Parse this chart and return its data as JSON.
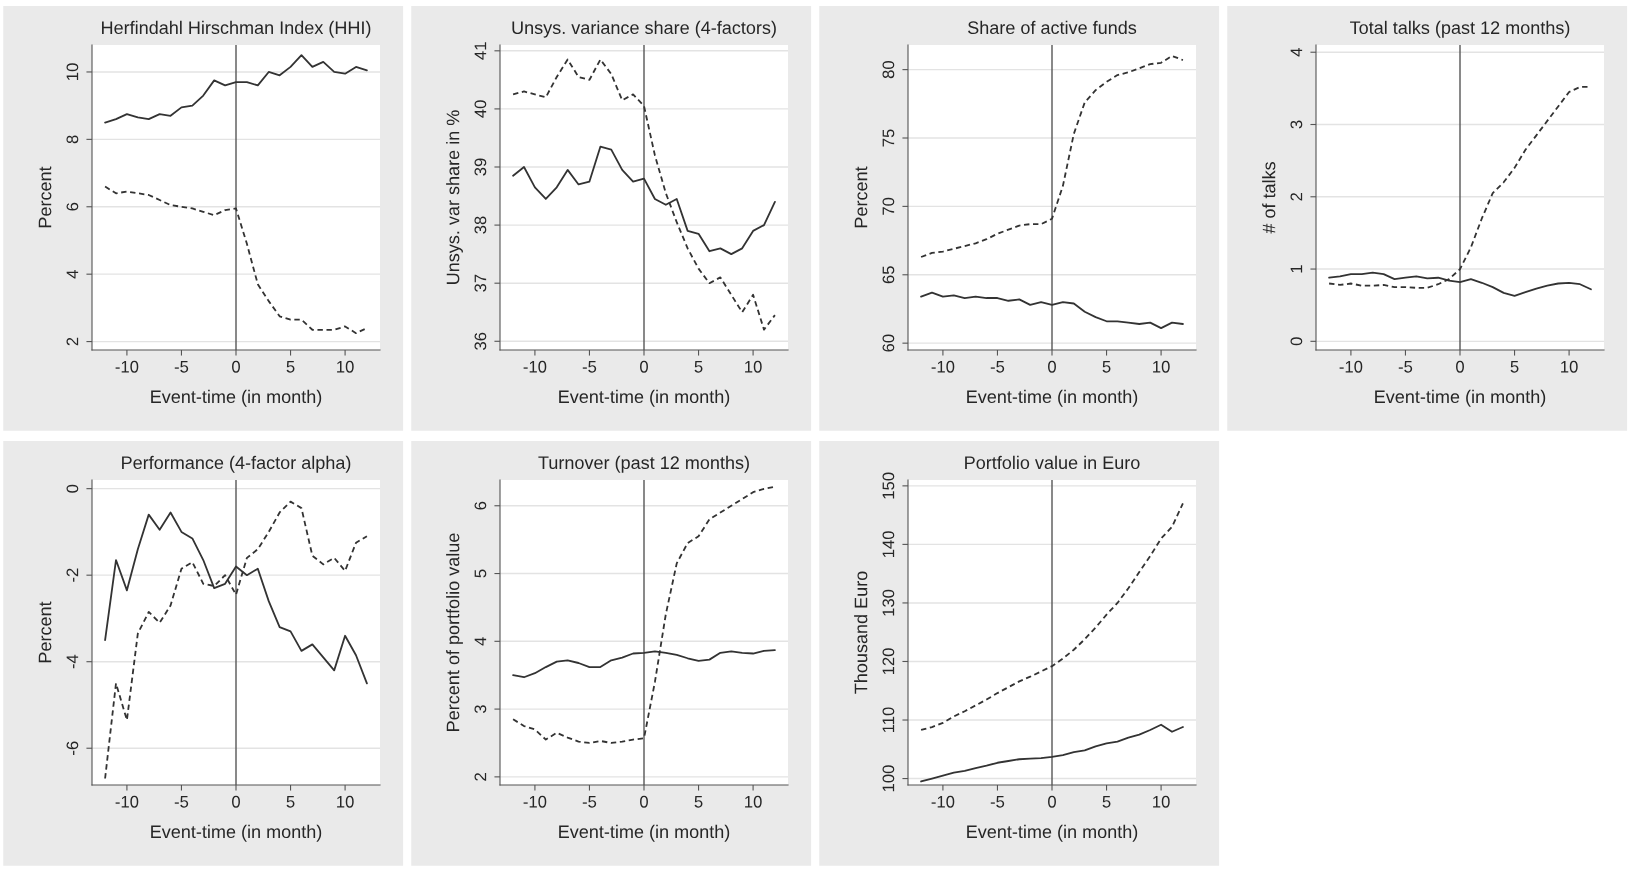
{
  "chart_data": [
    {
      "type": "line",
      "title": "Herfindahl Hirschman Index (HHI)",
      "xlabel": "Event-time (in month)",
      "ylabel": "Percent",
      "x": [
        -12,
        -11,
        -10,
        -9,
        -8,
        -7,
        -6,
        -5,
        -4,
        -3,
        -2,
        -1,
        0,
        1,
        2,
        3,
        4,
        5,
        6,
        7,
        8,
        9,
        10,
        11,
        12
      ],
      "xlim": [
        -13.2,
        13.2
      ],
      "xticks": [
        -10,
        -5,
        0,
        5,
        10
      ],
      "ylim": [
        1.75,
        10.8
      ],
      "yticks": [
        2,
        4,
        6,
        8,
        10
      ],
      "grid": "y",
      "ref_lines": [
        {
          "axis": "x",
          "value": 0,
          "color": "#555555"
        }
      ],
      "series": [
        {
          "color": "#333333",
          "line_style": "solid",
          "values": [
            8.5,
            8.6,
            8.75,
            8.65,
            8.6,
            8.75,
            8.7,
            8.95,
            9.0,
            9.3,
            9.75,
            9.6,
            9.7,
            9.7,
            9.6,
            10.0,
            9.9,
            10.15,
            10.5,
            10.15,
            10.3,
            10.0,
            9.95,
            10.15,
            10.05
          ]
        },
        {
          "color": "#333333",
          "line_style": "dashed",
          "values": [
            6.6,
            6.4,
            6.45,
            6.4,
            6.35,
            6.2,
            6.05,
            6.0,
            5.95,
            5.85,
            5.75,
            5.9,
            5.95,
            4.9,
            3.7,
            3.2,
            2.75,
            2.65,
            2.65,
            2.35,
            2.35,
            2.35,
            2.45,
            2.25,
            2.4
          ]
        }
      ]
    },
    {
      "type": "line",
      "title": "Unsys. variance share (4-factors)",
      "xlabel": "Event-time (in month)",
      "ylabel": "Unsys. var share in %",
      "x": [
        -12,
        -11,
        -10,
        -9,
        -8,
        -7,
        -6,
        -5,
        -4,
        -3,
        -2,
        -1,
        0,
        1,
        2,
        3,
        4,
        5,
        6,
        7,
        8,
        9,
        10,
        11,
        12
      ],
      "xlim": [
        -13.2,
        13.2
      ],
      "xticks": [
        -10,
        -5,
        0,
        5,
        10
      ],
      "ylim": [
        35.85,
        41.1
      ],
      "yticks": [
        36,
        37,
        38,
        39,
        40,
        41
      ],
      "grid": "y",
      "ref_lines": [
        {
          "axis": "x",
          "value": 0,
          "color": "#555555"
        }
      ],
      "series": [
        {
          "color": "#333333",
          "line_style": "solid",
          "values": [
            38.85,
            39.0,
            38.65,
            38.45,
            38.65,
            38.95,
            38.7,
            38.75,
            39.35,
            39.3,
            38.95,
            38.75,
            38.8,
            38.45,
            38.35,
            38.45,
            37.9,
            37.85,
            37.55,
            37.6,
            37.5,
            37.6,
            37.9,
            38.0,
            38.4
          ]
        },
        {
          "color": "#333333",
          "line_style": "dashed",
          "values": [
            40.25,
            40.3,
            40.25,
            40.2,
            40.55,
            40.85,
            40.55,
            40.5,
            40.85,
            40.6,
            40.15,
            40.25,
            40.05,
            39.2,
            38.55,
            38.05,
            37.6,
            37.25,
            37.0,
            37.1,
            36.8,
            36.5,
            36.8,
            36.2,
            36.45
          ]
        }
      ]
    },
    {
      "type": "line",
      "title": "Share of active funds",
      "xlabel": "Event-time (in month)",
      "ylabel": "Percent",
      "x": [
        -12,
        -11,
        -10,
        -9,
        -8,
        -7,
        -6,
        -5,
        -4,
        -3,
        -2,
        -1,
        0,
        1,
        2,
        3,
        4,
        5,
        6,
        7,
        8,
        9,
        10,
        11,
        12
      ],
      "xlim": [
        -13.2,
        13.2
      ],
      "xticks": [
        -10,
        -5,
        0,
        5,
        10
      ],
      "ylim": [
        59.5,
        81.8
      ],
      "yticks": [
        60,
        65,
        70,
        75,
        80
      ],
      "grid": "y",
      "ref_lines": [
        {
          "axis": "x",
          "value": 0,
          "color": "#555555"
        }
      ],
      "series": [
        {
          "color": "#333333",
          "line_style": "solid",
          "values": [
            63.4,
            63.7,
            63.4,
            63.5,
            63.3,
            63.4,
            63.3,
            63.3,
            63.1,
            63.2,
            62.8,
            63.0,
            62.8,
            63.0,
            62.9,
            62.3,
            61.9,
            61.6,
            61.6,
            61.5,
            61.4,
            61.5,
            61.1,
            61.5,
            61.4
          ]
        },
        {
          "color": "#333333",
          "line_style": "dashed",
          "values": [
            66.3,
            66.6,
            66.7,
            66.9,
            67.1,
            67.3,
            67.6,
            68.0,
            68.3,
            68.6,
            68.7,
            68.7,
            69.1,
            71.5,
            75.3,
            77.6,
            78.5,
            79.1,
            79.6,
            79.8,
            80.1,
            80.4,
            80.5,
            81.0,
            80.7
          ]
        }
      ]
    },
    {
      "type": "line",
      "title": "Total talks (past 12 months)",
      "xlabel": "Event-time (in month)",
      "ylabel": "# of talks",
      "x": [
        -12,
        -11,
        -10,
        -9,
        -8,
        -7,
        -6,
        -5,
        -4,
        -3,
        -2,
        -1,
        0,
        1,
        2,
        3,
        4,
        5,
        6,
        7,
        8,
        9,
        10,
        11,
        12
      ],
      "xlim": [
        -13.2,
        13.2
      ],
      "xticks": [
        -10,
        -5,
        0,
        5,
        10
      ],
      "ylim": [
        -0.12,
        4.1
      ],
      "yticks": [
        0,
        1,
        2,
        3,
        4
      ],
      "grid": "y",
      "ref_lines": [
        {
          "axis": "x",
          "value": 0,
          "color": "#555555"
        }
      ],
      "series": [
        {
          "color": "#333333",
          "line_style": "solid",
          "values": [
            0.88,
            0.9,
            0.93,
            0.93,
            0.95,
            0.93,
            0.86,
            0.88,
            0.9,
            0.87,
            0.88,
            0.84,
            0.82,
            0.86,
            0.81,
            0.75,
            0.67,
            0.63,
            0.68,
            0.73,
            0.77,
            0.8,
            0.81,
            0.79,
            0.72
          ]
        },
        {
          "color": "#333333",
          "line_style": "dashed",
          "values": [
            0.8,
            0.78,
            0.8,
            0.77,
            0.77,
            0.78,
            0.75,
            0.75,
            0.74,
            0.74,
            0.79,
            0.86,
            1.0,
            1.3,
            1.7,
            2.05,
            2.2,
            2.4,
            2.65,
            2.85,
            3.05,
            3.25,
            3.45,
            3.52,
            3.52
          ]
        }
      ]
    },
    {
      "type": "line",
      "title": "Performance (4-factor alpha)",
      "xlabel": "Event-time (in month)",
      "ylabel": "Percent",
      "x": [
        -12,
        -11,
        -10,
        -9,
        -8,
        -7,
        -6,
        -5,
        -4,
        -3,
        -2,
        -1,
        0,
        1,
        2,
        3,
        4,
        5,
        6,
        7,
        8,
        9,
        10,
        11,
        12
      ],
      "xlim": [
        -13.2,
        13.2
      ],
      "xticks": [
        -10,
        -5,
        0,
        5,
        10
      ],
      "ylim": [
        -6.85,
        0.2
      ],
      "yticks": [
        -6,
        -4,
        -2,
        0
      ],
      "grid": "y",
      "ref_lines": [
        {
          "axis": "x",
          "value": 0,
          "color": "#555555"
        }
      ],
      "series": [
        {
          "color": "#333333",
          "line_style": "solid",
          "values": [
            -3.5,
            -1.65,
            -2.35,
            -1.4,
            -0.6,
            -0.95,
            -0.55,
            -1.0,
            -1.15,
            -1.65,
            -2.3,
            -2.2,
            -1.8,
            -2.0,
            -1.85,
            -2.6,
            -3.2,
            -3.3,
            -3.75,
            -3.6,
            -3.9,
            -4.2,
            -3.4,
            -3.85,
            -4.5
          ]
        },
        {
          "color": "#333333",
          "line_style": "dashed",
          "values": [
            -6.7,
            -4.5,
            -5.35,
            -3.35,
            -2.85,
            -3.1,
            -2.7,
            -1.85,
            -1.7,
            -2.2,
            -2.25,
            -2.0,
            -2.45,
            -1.6,
            -1.4,
            -1.0,
            -0.55,
            -0.3,
            -0.45,
            -1.55,
            -1.75,
            -1.6,
            -1.9,
            -1.25,
            -1.1
          ]
        }
      ]
    },
    {
      "type": "line",
      "title": "Turnover (past 12 months)",
      "xlabel": "Event-time (in month)",
      "ylabel": "Percent of portfolio value",
      "x": [
        -12,
        -11,
        -10,
        -9,
        -8,
        -7,
        -6,
        -5,
        -4,
        -3,
        -2,
        -1,
        0,
        1,
        2,
        3,
        4,
        5,
        6,
        7,
        8,
        9,
        10,
        11,
        12
      ],
      "xlim": [
        -13.2,
        13.2
      ],
      "xticks": [
        -10,
        -5,
        0,
        5,
        10
      ],
      "ylim": [
        1.88,
        6.38
      ],
      "yticks": [
        2,
        3,
        4,
        5,
        6
      ],
      "grid": "y",
      "ref_lines": [
        {
          "axis": "x",
          "value": 0,
          "color": "#555555"
        }
      ],
      "series": [
        {
          "color": "#333333",
          "line_style": "solid",
          "values": [
            3.5,
            3.47,
            3.53,
            3.62,
            3.7,
            3.72,
            3.68,
            3.62,
            3.62,
            3.72,
            3.76,
            3.82,
            3.83,
            3.85,
            3.83,
            3.8,
            3.75,
            3.71,
            3.73,
            3.83,
            3.85,
            3.83,
            3.82,
            3.86,
            3.87
          ]
        },
        {
          "color": "#333333",
          "line_style": "dashed",
          "values": [
            2.85,
            2.75,
            2.7,
            2.55,
            2.65,
            2.58,
            2.52,
            2.5,
            2.53,
            2.5,
            2.52,
            2.55,
            2.57,
            3.4,
            4.4,
            5.15,
            5.45,
            5.55,
            5.8,
            5.9,
            6.0,
            6.1,
            6.2,
            6.25,
            6.28
          ]
        }
      ]
    },
    {
      "type": "line",
      "title": "Portfolio value in Euro",
      "xlabel": "Event-time (in month)",
      "ylabel": "Thousand Euro",
      "x": [
        -12,
        -11,
        -10,
        -9,
        -8,
        -7,
        -6,
        -5,
        -4,
        -3,
        -2,
        -1,
        0,
        1,
        2,
        3,
        4,
        5,
        6,
        7,
        8,
        9,
        10,
        11,
        12
      ],
      "xlim": [
        -13.2,
        13.2
      ],
      "xticks": [
        -10,
        -5,
        0,
        5,
        10
      ],
      "ylim": [
        98.9,
        151
      ],
      "yticks": [
        100,
        110,
        120,
        130,
        140,
        150
      ],
      "grid": "y",
      "ref_lines": [
        {
          "axis": "x",
          "value": 0,
          "color": "#555555"
        }
      ],
      "series": [
        {
          "color": "#333333",
          "line_style": "solid",
          "values": [
            99.5,
            100.0,
            100.5,
            101.0,
            101.3,
            101.8,
            102.2,
            102.7,
            103.0,
            103.3,
            103.4,
            103.5,
            103.7,
            104.0,
            104.5,
            104.8,
            105.5,
            106.0,
            106.3,
            107.0,
            107.5,
            108.3,
            109.2,
            108.0,
            108.8
          ]
        },
        {
          "color": "#333333",
          "line_style": "dashed",
          "values": [
            108.3,
            108.8,
            109.5,
            110.6,
            111.5,
            112.5,
            113.5,
            114.6,
            115.6,
            116.6,
            117.4,
            118.3,
            119.2,
            120.5,
            122.0,
            123.8,
            125.8,
            128.0,
            130.0,
            132.5,
            135.3,
            138.0,
            141.0,
            143.0,
            147.0
          ]
        }
      ]
    }
  ]
}
